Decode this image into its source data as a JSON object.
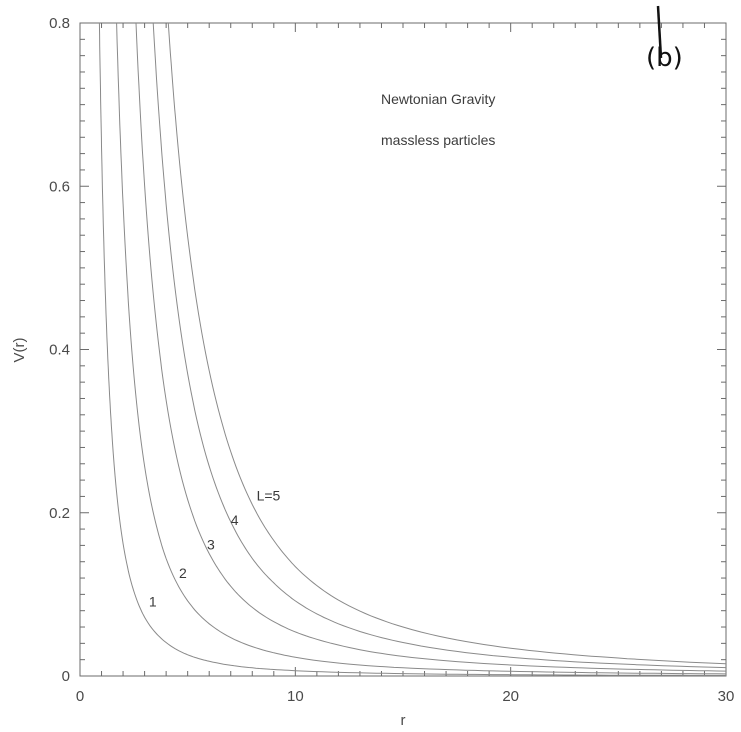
{
  "chart_data": {
    "type": "line",
    "title": "",
    "xlabel": "r",
    "ylabel": "V(r)",
    "xlim": [
      0,
      30
    ],
    "ylim": [
      0,
      0.8
    ],
    "x_ticks": [
      0,
      10,
      20,
      30
    ],
    "y_ticks": [
      0,
      0.2,
      0.4,
      0.6,
      0.8
    ],
    "x_tick_labels": [
      "0",
      "10",
      "20",
      "30"
    ],
    "y_tick_labels": [
      "0",
      "0.2",
      "0.4",
      "0.6",
      "0.8"
    ],
    "grid": false,
    "panel_label": "(b)",
    "annotations": [
      "Newtonian Gravity",
      "massless particles"
    ],
    "series": [
      {
        "name": "1",
        "label_at": [
          3.2,
          0.085
        ],
        "x": [
          0.9,
          1.0,
          1.25,
          1.5,
          2,
          2.5,
          3,
          4,
          5,
          6,
          8,
          10,
          15,
          20,
          25,
          30
        ],
        "y": [
          0.8,
          0.649,
          0.415,
          0.289,
          0.162,
          0.104,
          0.072,
          0.041,
          0.026,
          0.018,
          0.01,
          0.0065,
          0.0029,
          0.0016,
          0.001,
          0.0007
        ]
      },
      {
        "name": "2",
        "label_at": [
          4.6,
          0.12
        ],
        "x": [
          1.7,
          2,
          2.5,
          3,
          3.5,
          4,
          5,
          6,
          8,
          10,
          15,
          20,
          25,
          30
        ],
        "y": [
          0.8,
          0.578,
          0.37,
          0.257,
          0.189,
          0.144,
          0.092,
          0.064,
          0.036,
          0.023,
          0.01,
          0.0058,
          0.0037,
          0.0026
        ]
      },
      {
        "name": "3",
        "label_at": [
          5.9,
          0.155
        ],
        "x": [
          2.6,
          3,
          3.5,
          4,
          5,
          6,
          7,
          8,
          10,
          12,
          15,
          20,
          25,
          30
        ],
        "y": [
          0.8,
          0.601,
          0.442,
          0.338,
          0.216,
          0.15,
          0.11,
          0.084,
          0.054,
          0.038,
          0.024,
          0.0135,
          0.0086,
          0.006
        ]
      },
      {
        "name": "4",
        "label_at": [
          7.0,
          0.185
        ],
        "x": [
          3.4,
          4,
          4.5,
          5,
          6,
          7,
          8,
          9,
          10,
          12,
          15,
          20,
          25,
          30
        ],
        "y": [
          0.8,
          0.578,
          0.457,
          0.37,
          0.257,
          0.189,
          0.144,
          0.114,
          0.092,
          0.064,
          0.041,
          0.023,
          0.0148,
          0.0103
        ]
      },
      {
        "name": "L=5",
        "label_at": [
          8.2,
          0.215
        ],
        "x": [
          4.1,
          4.5,
          5,
          6,
          7,
          8,
          9,
          10,
          12,
          15,
          20,
          25,
          30
        ],
        "y": [
          0.8,
          0.664,
          0.538,
          0.374,
          0.275,
          0.21,
          0.166,
          0.134,
          0.093,
          0.06,
          0.034,
          0.022,
          0.015
        ]
      }
    ]
  }
}
